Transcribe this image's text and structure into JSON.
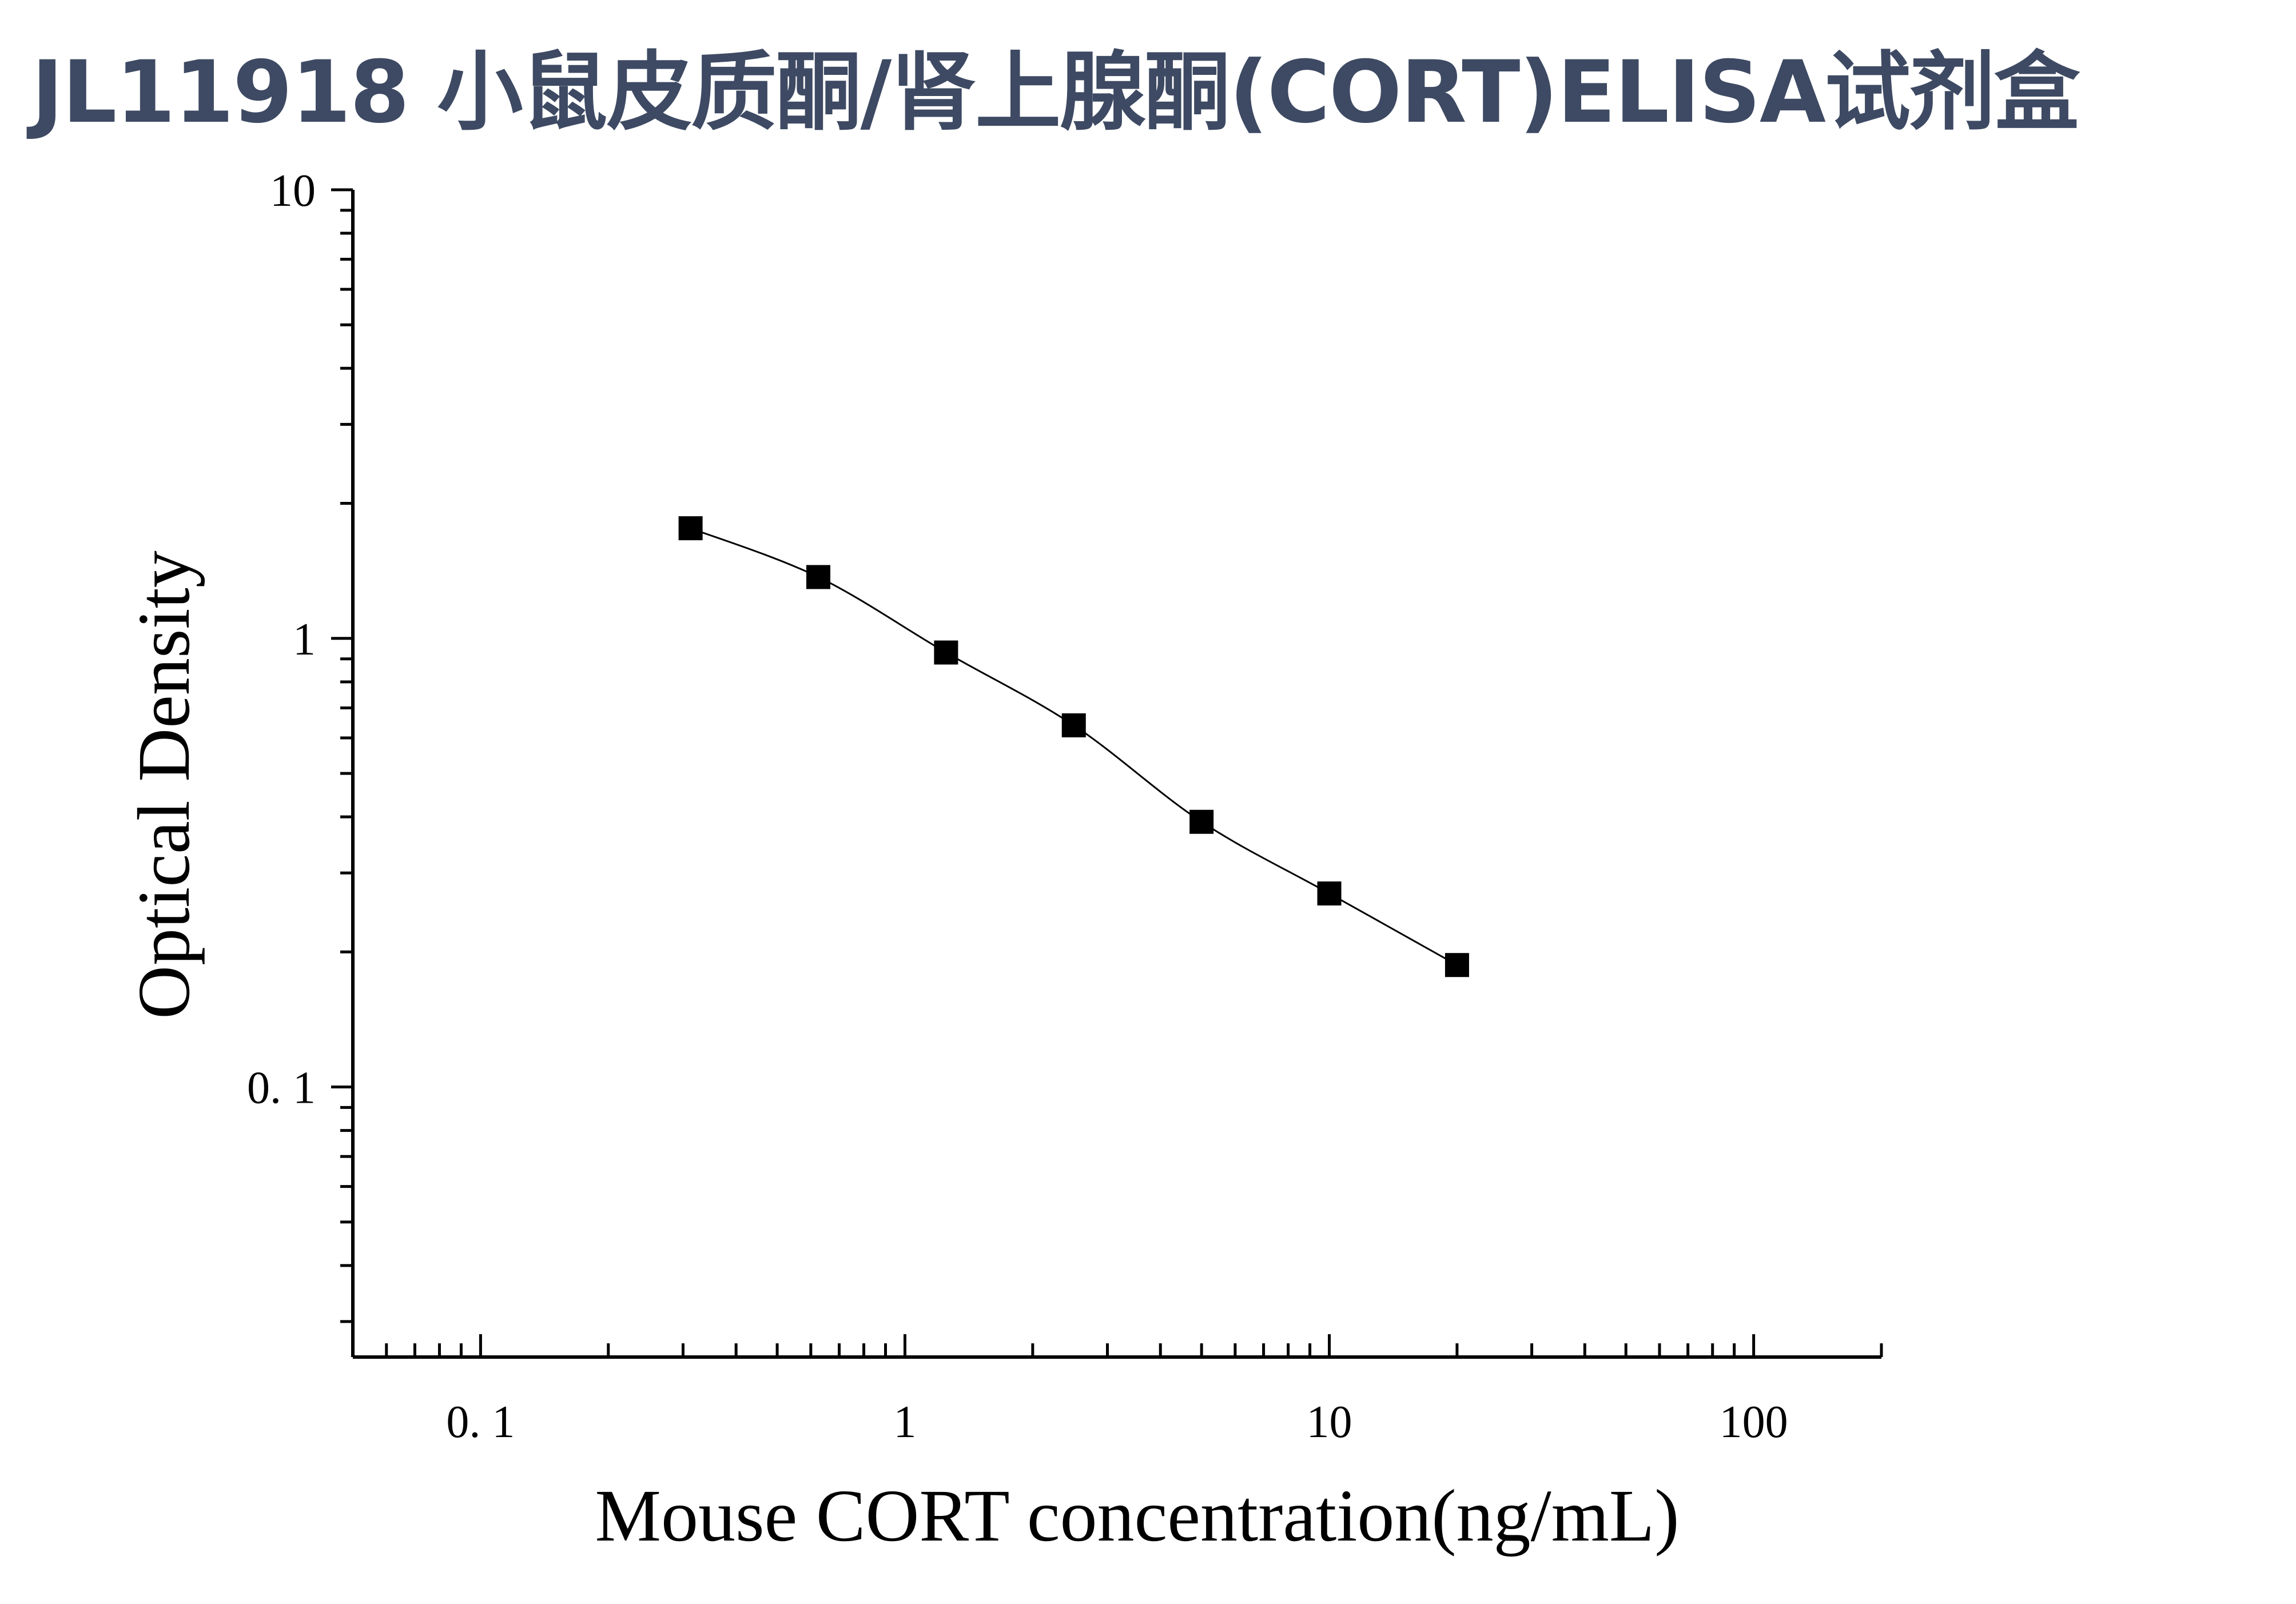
{
  "title": "JL11918 小鼠皮质酮/肾上腺酮(CORT)ELISA试剂盒",
  "chart_data": {
    "type": "scatter",
    "xlabel": "Mouse CORT concentration(ng/mL)",
    "ylabel": "Optical Density",
    "xscale": "log",
    "yscale": "log",
    "xlim": [
      0.05,
      200
    ],
    "ylim": [
      0.025,
      10
    ],
    "x_ticks": [
      0.1,
      1,
      10,
      100
    ],
    "x_tick_labels": [
      "0. 1",
      "1",
      "10",
      "100"
    ],
    "y_ticks": [
      0.1,
      1,
      10
    ],
    "y_tick_labels": [
      "0. 1",
      "1",
      "10"
    ],
    "grid": false,
    "legend": "none",
    "series": [
      {
        "marker": "square",
        "color": "#000000",
        "x": [
          0.3125,
          0.625,
          1.25,
          2.5,
          5,
          10,
          20
        ],
        "y": [
          1.76,
          1.37,
          0.93,
          0.64,
          0.39,
          0.27,
          0.187
        ],
        "fit_line": true
      }
    ]
  }
}
